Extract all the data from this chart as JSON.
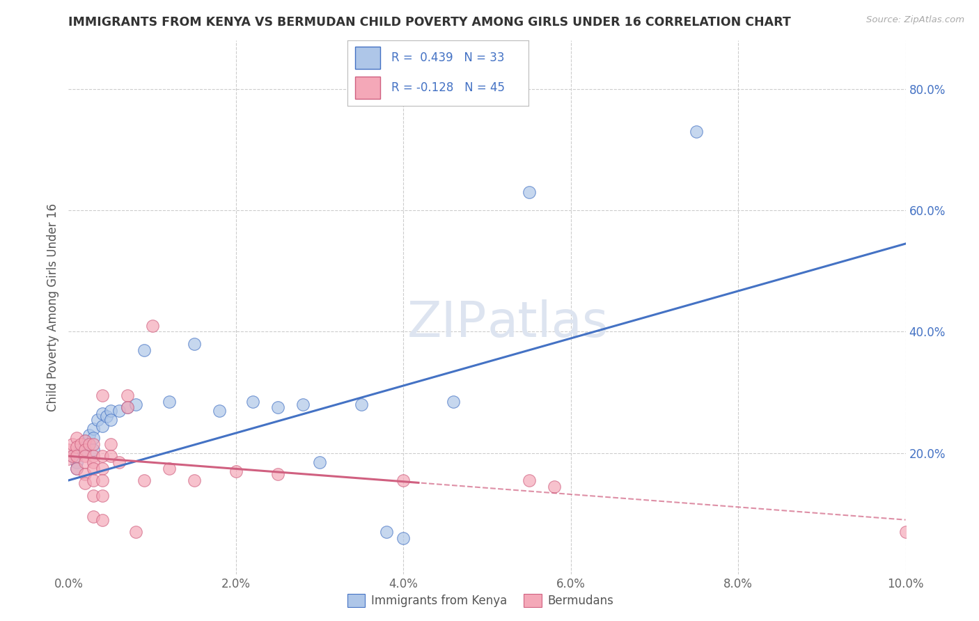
{
  "title": "IMMIGRANTS FROM KENYA VS BERMUDAN CHILD POVERTY AMONG GIRLS UNDER 16 CORRELATION CHART",
  "source": "Source: ZipAtlas.com",
  "ylabel": "Child Poverty Among Girls Under 16",
  "legend_label1": "Immigrants from Kenya",
  "legend_label2": "Bermudans",
  "r1": 0.439,
  "n1": 33,
  "r2": -0.128,
  "n2": 45,
  "xlim": [
    0.0,
    0.1
  ],
  "ylim": [
    0.0,
    0.88
  ],
  "yticks_right": [
    0.2,
    0.4,
    0.6,
    0.8
  ],
  "ytick_right_labels": [
    "20.0%",
    "40.0%",
    "60.0%",
    "80.0%"
  ],
  "xticks": [
    0.0,
    0.02,
    0.04,
    0.06,
    0.08,
    0.1
  ],
  "xtick_labels": [
    "0.0%",
    "2.0%",
    "4.0%",
    "6.0%",
    "8.0%",
    "10.0%"
  ],
  "grid_color": "#cccccc",
  "bg_color": "#ffffff",
  "blue_color": "#aec6e8",
  "blue_line_color": "#4472c4",
  "pink_color": "#f4a8b8",
  "pink_line_color": "#d06080",
  "watermark_color": "#dde4f0",
  "blue_scatter": [
    [
      0.0005,
      0.195
    ],
    [
      0.001,
      0.185
    ],
    [
      0.001,
      0.175
    ],
    [
      0.0015,
      0.21
    ],
    [
      0.002,
      0.22
    ],
    [
      0.002,
      0.205
    ],
    [
      0.0025,
      0.23
    ],
    [
      0.003,
      0.24
    ],
    [
      0.003,
      0.225
    ],
    [
      0.003,
      0.205
    ],
    [
      0.0035,
      0.255
    ],
    [
      0.004,
      0.265
    ],
    [
      0.004,
      0.245
    ],
    [
      0.0045,
      0.26
    ],
    [
      0.005,
      0.27
    ],
    [
      0.005,
      0.255
    ],
    [
      0.006,
      0.27
    ],
    [
      0.007,
      0.275
    ],
    [
      0.008,
      0.28
    ],
    [
      0.009,
      0.37
    ],
    [
      0.012,
      0.285
    ],
    [
      0.015,
      0.38
    ],
    [
      0.018,
      0.27
    ],
    [
      0.022,
      0.285
    ],
    [
      0.025,
      0.275
    ],
    [
      0.028,
      0.28
    ],
    [
      0.03,
      0.185
    ],
    [
      0.035,
      0.28
    ],
    [
      0.038,
      0.07
    ],
    [
      0.04,
      0.06
    ],
    [
      0.046,
      0.285
    ],
    [
      0.055,
      0.63
    ],
    [
      0.075,
      0.73
    ]
  ],
  "pink_scatter": [
    [
      0.0,
      0.205
    ],
    [
      0.0,
      0.19
    ],
    [
      0.0005,
      0.215
    ],
    [
      0.0005,
      0.195
    ],
    [
      0.001,
      0.225
    ],
    [
      0.001,
      0.21
    ],
    [
      0.001,
      0.195
    ],
    [
      0.001,
      0.175
    ],
    [
      0.0015,
      0.215
    ],
    [
      0.002,
      0.22
    ],
    [
      0.002,
      0.205
    ],
    [
      0.002,
      0.195
    ],
    [
      0.002,
      0.185
    ],
    [
      0.002,
      0.165
    ],
    [
      0.002,
      0.15
    ],
    [
      0.0025,
      0.215
    ],
    [
      0.003,
      0.215
    ],
    [
      0.003,
      0.195
    ],
    [
      0.003,
      0.185
    ],
    [
      0.003,
      0.175
    ],
    [
      0.003,
      0.155
    ],
    [
      0.003,
      0.13
    ],
    [
      0.003,
      0.095
    ],
    [
      0.004,
      0.295
    ],
    [
      0.004,
      0.195
    ],
    [
      0.004,
      0.175
    ],
    [
      0.004,
      0.155
    ],
    [
      0.004,
      0.13
    ],
    [
      0.004,
      0.09
    ],
    [
      0.005,
      0.215
    ],
    [
      0.005,
      0.195
    ],
    [
      0.006,
      0.185
    ],
    [
      0.007,
      0.295
    ],
    [
      0.007,
      0.275
    ],
    [
      0.008,
      0.07
    ],
    [
      0.009,
      0.155
    ],
    [
      0.01,
      0.41
    ],
    [
      0.012,
      0.175
    ],
    [
      0.015,
      0.155
    ],
    [
      0.02,
      0.17
    ],
    [
      0.025,
      0.165
    ],
    [
      0.04,
      0.155
    ],
    [
      0.055,
      0.155
    ],
    [
      0.058,
      0.145
    ],
    [
      0.1,
      0.07
    ]
  ]
}
